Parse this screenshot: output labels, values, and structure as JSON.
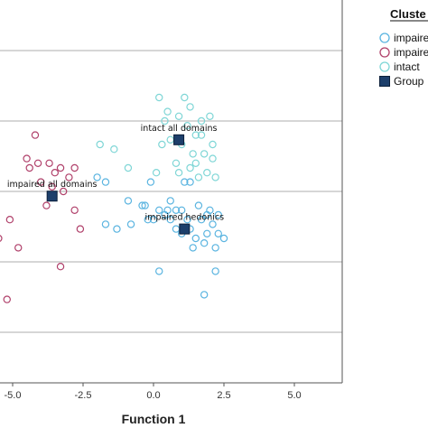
{
  "chart_data": {
    "type": "scatter",
    "xlabel": "Function 1",
    "ylabel": "",
    "xlim": [
      -5.2,
      6.5
    ],
    "ylim": [
      -4.0,
      4.5
    ],
    "x_ticks": [
      "-5.0",
      "-2.5",
      "0.0",
      "2.5",
      "5.0"
    ],
    "x_tick_values": [
      -5.0,
      -2.5,
      0.0,
      2.5,
      5.0
    ],
    "y_gridlines": [
      3.0,
      1.5,
      0.0,
      -1.5,
      -3.0
    ],
    "grid": true,
    "legend": {
      "title": "Cluste",
      "placement": "top-right",
      "entries": [
        "impaire",
        "impaire",
        "intact ",
        "Group"
      ]
    },
    "series": [
      {
        "name": "impaired hedonics",
        "color": "#5ab4e0",
        "marker": "circle-open",
        "points": [
          [
            -2.0,
            0.3
          ],
          [
            -1.7,
            0.2
          ],
          [
            -1.3,
            -0.8
          ],
          [
            -0.8,
            -0.7
          ],
          [
            -0.9,
            -0.2
          ],
          [
            -0.4,
            -0.3
          ],
          [
            -0.2,
            -0.6
          ],
          [
            -0.3,
            -0.3
          ],
          [
            0.0,
            -0.6
          ],
          [
            0.2,
            -0.4
          ],
          [
            0.4,
            -0.5
          ],
          [
            0.6,
            -0.6
          ],
          [
            0.8,
            -0.8
          ],
          [
            1.0,
            -0.9
          ],
          [
            1.2,
            -0.6
          ],
          [
            1.3,
            -0.8
          ],
          [
            1.5,
            -1.0
          ],
          [
            1.7,
            -0.6
          ],
          [
            1.9,
            -0.9
          ],
          [
            2.1,
            -0.7
          ],
          [
            2.3,
            -0.5
          ],
          [
            2.5,
            -1.0
          ],
          [
            2.2,
            -1.2
          ],
          [
            1.8,
            -1.1
          ],
          [
            1.4,
            -1.2
          ],
          [
            0.6,
            -0.2
          ],
          [
            0.8,
            -0.4
          ],
          [
            1.6,
            -0.3
          ],
          [
            2.0,
            -0.4
          ],
          [
            -1.7,
            -0.7
          ],
          [
            1.3,
            0.2
          ],
          [
            1.0,
            -0.4
          ],
          [
            0.2,
            -1.7
          ],
          [
            1.8,
            -2.2
          ],
          [
            2.2,
            -1.7
          ],
          [
            0.5,
            -0.4
          ],
          [
            -0.1,
            0.2
          ],
          [
            1.1,
            0.2
          ],
          [
            1.9,
            -0.5
          ],
          [
            2.3,
            -0.9
          ]
        ]
      },
      {
        "name": "impaired all domains",
        "color": "#b0406a",
        "marker": "circle-open",
        "points": [
          [
            -4.2,
            1.2
          ],
          [
            -4.5,
            0.7
          ],
          [
            -4.1,
            0.6
          ],
          [
            -3.7,
            0.6
          ],
          [
            -3.3,
            0.5
          ],
          [
            -2.8,
            0.5
          ],
          [
            -3.5,
            0.4
          ],
          [
            -3.0,
            0.3
          ],
          [
            -3.2,
            0.0
          ],
          [
            -3.6,
            0.1
          ],
          [
            -4.8,
            -1.2
          ],
          [
            -5.5,
            -1.0
          ],
          [
            -3.3,
            -1.6
          ],
          [
            -5.2,
            -2.3
          ],
          [
            -2.8,
            -0.4
          ],
          [
            -2.6,
            -0.8
          ],
          [
            -4.0,
            0.2
          ],
          [
            -3.8,
            -0.3
          ],
          [
            -5.1,
            -0.6
          ],
          [
            -4.4,
            0.5
          ]
        ]
      },
      {
        "name": "intact all domains",
        "color": "#7fd6d6",
        "marker": "circle-open",
        "points": [
          [
            0.2,
            2.0
          ],
          [
            0.5,
            1.7
          ],
          [
            0.9,
            1.6
          ],
          [
            1.3,
            1.8
          ],
          [
            1.7,
            1.5
          ],
          [
            2.0,
            1.6
          ],
          [
            1.2,
            1.4
          ],
          [
            0.6,
            1.1
          ],
          [
            1.0,
            1.0
          ],
          [
            1.4,
            0.8
          ],
          [
            1.8,
            0.8
          ],
          [
            2.1,
            1.0
          ],
          [
            1.5,
            0.6
          ],
          [
            0.8,
            0.6
          ],
          [
            1.9,
            0.4
          ],
          [
            1.6,
            0.3
          ],
          [
            2.2,
            0.3
          ],
          [
            1.3,
            0.5
          ],
          [
            0.9,
            0.4
          ],
          [
            1.7,
            1.2
          ],
          [
            1.1,
            2.0
          ],
          [
            0.4,
            1.5
          ],
          [
            0.3,
            1.0
          ],
          [
            1.5,
            1.2
          ],
          [
            2.1,
            0.7
          ],
          [
            -1.9,
            1.0
          ],
          [
            -0.9,
            0.5
          ],
          [
            0.1,
            0.4
          ],
          [
            -1.4,
            0.9
          ]
        ]
      }
    ],
    "centroids": [
      {
        "label": "intact all domains",
        "x": 0.9,
        "y": 1.1
      },
      {
        "label": "impaired all domains",
        "x": -3.6,
        "y": -0.1
      },
      {
        "label": "impaired hedonics",
        "x": 1.1,
        "y": -0.8
      }
    ],
    "centroid_color": "#1d3f6b"
  }
}
